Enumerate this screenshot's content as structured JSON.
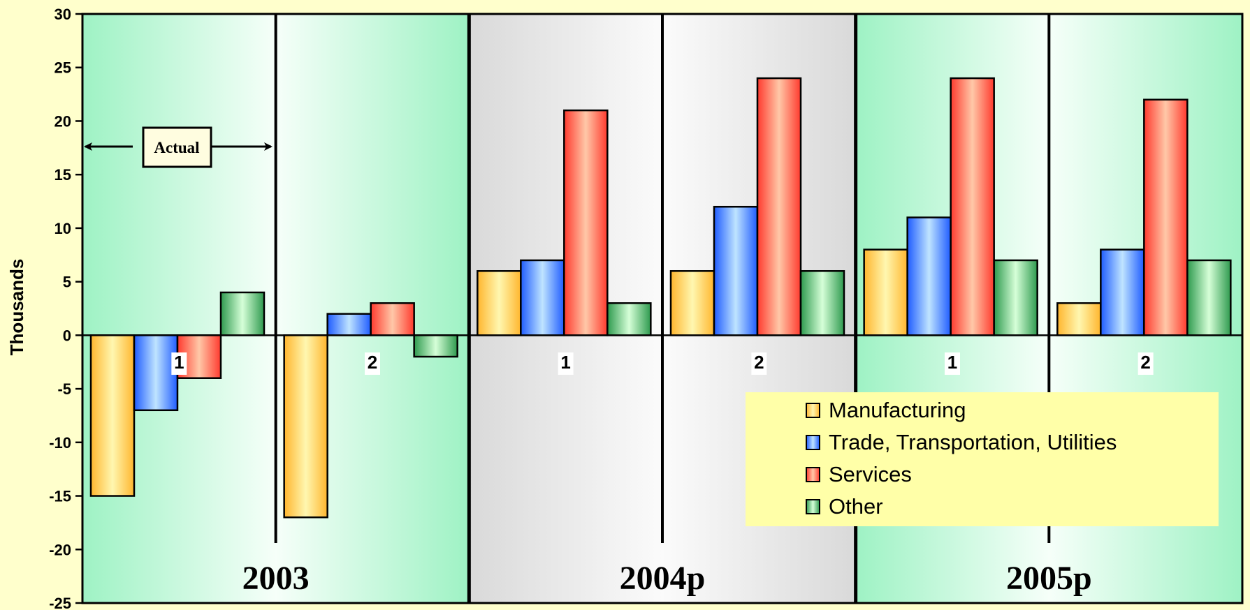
{
  "chart_data": {
    "type": "bar",
    "ylabel": "Thousands",
    "ylim": [
      -25,
      30
    ],
    "yticks": [
      30,
      25,
      20,
      15,
      10,
      5,
      0,
      -5,
      -10,
      -15,
      -20,
      -25
    ],
    "categories": [
      "1",
      "2",
      "1",
      "2",
      "1",
      "2"
    ],
    "groups": [
      {
        "label": "2003",
        "halves": [
          "1",
          "2"
        ],
        "background": "green"
      },
      {
        "label": "2004p",
        "halves": [
          "1",
          "2"
        ],
        "background": "gray"
      },
      {
        "label": "2005p",
        "halves": [
          "1",
          "2"
        ],
        "background": "green"
      }
    ],
    "series": [
      {
        "name": "Manufacturing",
        "values": [
          -15,
          -17,
          6,
          6,
          8,
          3
        ],
        "color": "#ffc845"
      },
      {
        "name": "Trade, Transportation, Utilities",
        "values": [
          -7,
          2,
          7,
          12,
          11,
          8
        ],
        "color": "#3a7bff"
      },
      {
        "name": "Services",
        "values": [
          -4,
          3,
          21,
          24,
          24,
          22
        ],
        "color": "#ff5a4a"
      },
      {
        "name": "Other",
        "values": [
          4,
          -2,
          3,
          6,
          7,
          7
        ],
        "color": "#4fb06a"
      }
    ],
    "annotations": [
      {
        "text": "Actual"
      }
    ],
    "grid": false,
    "legend_position": "bottom-right"
  }
}
